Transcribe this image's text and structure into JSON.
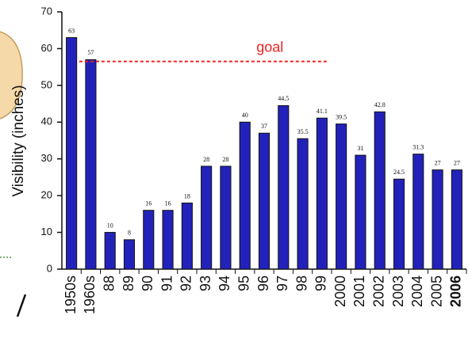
{
  "chart_data": {
    "type": "bar",
    "ylabel": "Visibility (inches)",
    "categories": [
      "1950s",
      "1960s",
      "88",
      "89",
      "90",
      "91",
      "92",
      "93",
      "94",
      "95",
      "96",
      "97",
      "98",
      "99",
      "2000",
      "2001",
      "2002",
      "2003",
      "2004",
      "2005",
      "2006"
    ],
    "values": [
      63,
      57,
      10,
      8,
      16,
      16,
      18,
      28,
      28,
      40,
      37,
      44.5,
      35.5,
      41.1,
      39.5,
      31,
      42.8,
      24.5,
      31.3,
      27,
      27
    ],
    "color": "#2222bb",
    "ylim": [
      0,
      70
    ],
    "yticks": [
      0,
      10,
      20,
      30,
      40,
      50,
      60,
      70
    ],
    "goal": {
      "label": "goal",
      "value": 56.5,
      "color": "#ee2222"
    }
  }
}
